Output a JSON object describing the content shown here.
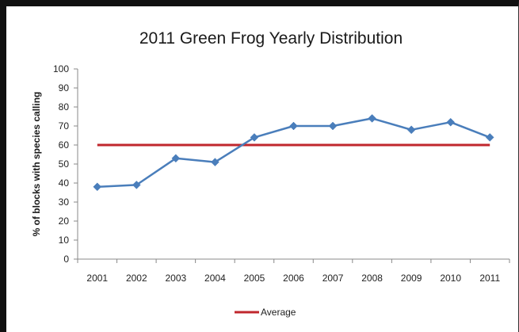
{
  "chart_data": {
    "type": "line",
    "title": "2011 Green Frog Yearly Distribution",
    "xlabel": "",
    "ylabel": "% of blocks with species calling",
    "categories": [
      "2001",
      "2002",
      "2003",
      "2004",
      "2005",
      "2006",
      "2007",
      "2008",
      "2009",
      "2010",
      "2011"
    ],
    "ylim": [
      0,
      100
    ],
    "yticks": [
      "0",
      "10",
      "20",
      "30",
      "40",
      "50",
      "60",
      "70",
      "80",
      "90",
      "100"
    ],
    "grid": false,
    "legend_position": "bottom",
    "series": [
      {
        "values": [
          38,
          39,
          53,
          51,
          64,
          70,
          70,
          74,
          68,
          72,
          64
        ],
        "color": "#4a7ebb",
        "marker": "diamond"
      },
      {
        "name": "Average",
        "values": [
          60,
          60,
          60,
          60,
          60,
          60,
          60,
          60,
          60,
          60,
          60
        ],
        "color": "#c0272d",
        "marker": "none"
      }
    ]
  }
}
